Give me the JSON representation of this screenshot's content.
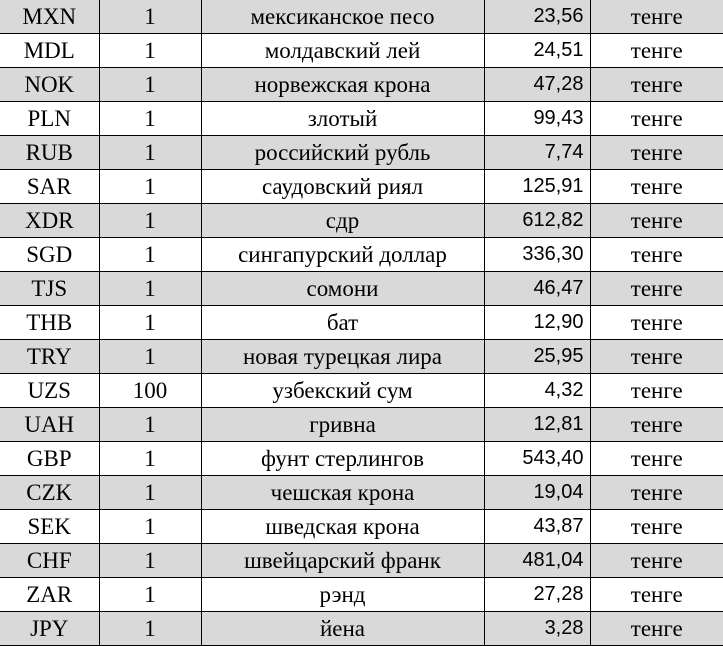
{
  "colors": {
    "row_alt": "#d9d9d9",
    "row": "#ffffff"
  },
  "rows": [
    {
      "code": "MXN",
      "nominal": "1",
      "name": "мексиканское песо",
      "rate": "23,56",
      "unit": "тенге"
    },
    {
      "code": "MDL",
      "nominal": "1",
      "name": "молдавский лей",
      "rate": "24,51",
      "unit": "тенге"
    },
    {
      "code": "NOK",
      "nominal": "1",
      "name": "норвежская крона",
      "rate": "47,28",
      "unit": "тенге"
    },
    {
      "code": "PLN",
      "nominal": "1",
      "name": "злотый",
      "rate": "99,43",
      "unit": "тенге"
    },
    {
      "code": "RUB",
      "nominal": "1",
      "name": "российский рубль",
      "rate": "7,74",
      "unit": "тенге"
    },
    {
      "code": "SAR",
      "nominal": "1",
      "name": "саудовский риял",
      "rate": "125,91",
      "unit": "тенге"
    },
    {
      "code": "XDR",
      "nominal": "1",
      "name": "сдр",
      "rate": "612,82",
      "unit": "тенге"
    },
    {
      "code": "SGD",
      "nominal": "1",
      "name": "сингапурский доллар",
      "rate": "336,30",
      "unit": "тенге"
    },
    {
      "code": "TJS",
      "nominal": "1",
      "name": "сомони",
      "rate": "46,47",
      "unit": "тенге"
    },
    {
      "code": "THB",
      "nominal": "1",
      "name": "бат",
      "rate": "12,90",
      "unit": "тенге"
    },
    {
      "code": "TRY",
      "nominal": "1",
      "name": "новая турецкая лира",
      "rate": "25,95",
      "unit": "тенге"
    },
    {
      "code": "UZS",
      "nominal": "100",
      "name": "узбекский сум",
      "rate": "4,32",
      "unit": "тенге"
    },
    {
      "code": "UAH",
      "nominal": "1",
      "name": "гривна",
      "rate": "12,81",
      "unit": "тенге"
    },
    {
      "code": "GBP",
      "nominal": "1",
      "name": "фунт стерлингов",
      "rate": "543,40",
      "unit": "тенге"
    },
    {
      "code": "CZK",
      "nominal": "1",
      "name": "чешская крона",
      "rate": "19,04",
      "unit": "тенге"
    },
    {
      "code": "SEK",
      "nominal": "1",
      "name": "шведская крона",
      "rate": "43,87",
      "unit": "тенге"
    },
    {
      "code": "CHF",
      "nominal": "1",
      "name": "швейцарский франк",
      "rate": "481,04",
      "unit": "тенге"
    },
    {
      "code": "ZAR",
      "nominal": "1",
      "name": "рэнд",
      "rate": "27,28",
      "unit": "тенге"
    },
    {
      "code": "JPY",
      "nominal": "1",
      "name": "йена",
      "rate": "3,28",
      "unit": "тенге"
    }
  ]
}
